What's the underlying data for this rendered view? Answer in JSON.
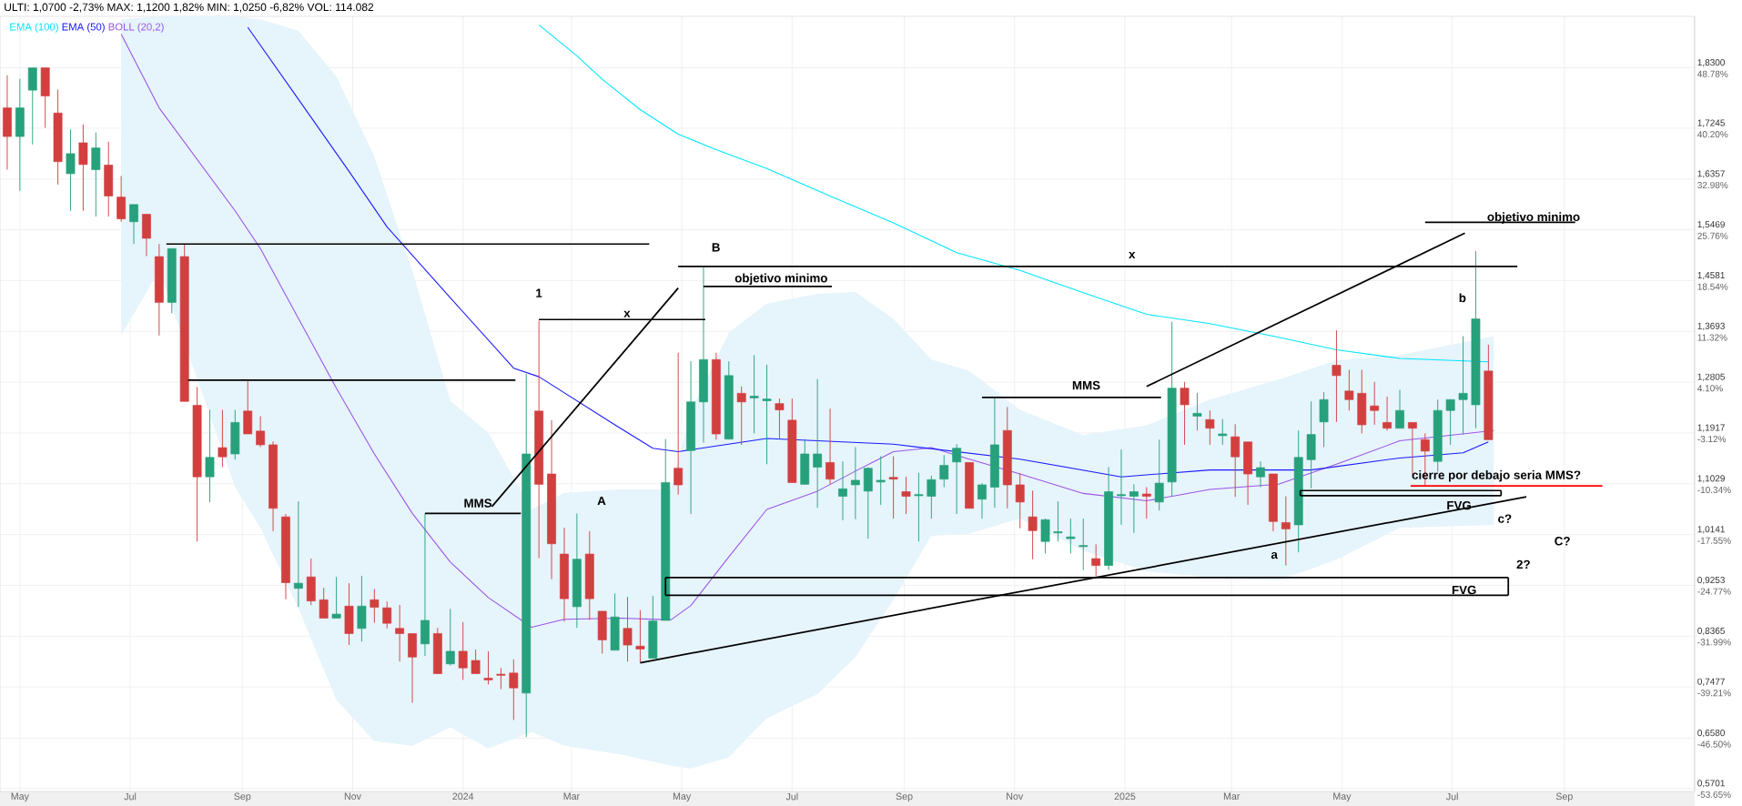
{
  "chart_data": {
    "type": "candlestick",
    "title": "ULTI: 1,0700 -2,73% MAX: 1,1200 1,82% MIN: 1,0250 -6,82% VOL: 114.082",
    "x": [
      "2023-04-24",
      "2023-05-01",
      "2023-05-08",
      "2023-05-15",
      "2023-05-22",
      "2023-05-29",
      "2023-06-05",
      "2023-06-12",
      "2023-06-19",
      "2023-06-26",
      "2023-07-03",
      "2023-07-10",
      "2023-07-17",
      "2023-07-24",
      "2023-07-31",
      "2023-08-07",
      "2023-08-14",
      "2023-08-21",
      "2023-08-28",
      "2023-09-04",
      "2023-09-11",
      "2023-09-18",
      "2023-09-25",
      "2023-10-02",
      "2023-10-09",
      "2023-10-16",
      "2023-10-23",
      "2023-10-30",
      "2023-11-06",
      "2023-11-13",
      "2023-11-20",
      "2023-11-27",
      "2023-12-04",
      "2023-12-11",
      "2023-12-18",
      "2023-12-25",
      "2024-01-01",
      "2024-01-08",
      "2024-01-15",
      "2024-01-22",
      "2024-01-29",
      "2024-02-05",
      "2024-02-12",
      "2024-02-19",
      "2024-02-26",
      "2024-03-04",
      "2024-03-11",
      "2024-03-18",
      "2024-03-25",
      "2024-04-01",
      "2024-04-08",
      "2024-04-15",
      "2024-04-22",
      "2024-04-29",
      "2024-05-06",
      "2024-05-13",
      "2024-05-20",
      "2024-05-27",
      "2024-06-03",
      "2024-06-10",
      "2024-06-17",
      "2024-06-24",
      "2024-07-01",
      "2024-07-08",
      "2024-07-15",
      "2024-07-22",
      "2024-07-29",
      "2024-08-05",
      "2024-08-12",
      "2024-08-19",
      "2024-08-26",
      "2024-09-02",
      "2024-09-09",
      "2024-09-16",
      "2024-09-23",
      "2024-09-30",
      "2024-10-07",
      "2024-10-14",
      "2024-10-21",
      "2024-10-28",
      "2024-11-04",
      "2024-11-11",
      "2024-11-18",
      "2024-11-25",
      "2024-12-02",
      "2024-12-09",
      "2024-12-16",
      "2024-12-23",
      "2024-12-30",
      "2025-01-06",
      "2025-01-13",
      "2025-01-20",
      "2025-01-27",
      "2025-02-03",
      "2025-02-10",
      "2025-02-17",
      "2025-02-24",
      "2025-03-03",
      "2025-03-10",
      "2025-03-17",
      "2025-03-24",
      "2025-03-31",
      "2025-04-07",
      "2025-04-14",
      "2025-04-21",
      "2025-04-28",
      "2025-05-05",
      "2025-05-12",
      "2025-05-19",
      "2025-05-26",
      "2025-06-02",
      "2025-06-09",
      "2025-06-16",
      "2025-06-23",
      "2025-06-30",
      "2025-07-07",
      "2025-07-14",
      "2025-07-21"
    ],
    "ohlc": [
      [
        1.76,
        1.817,
        1.652,
        1.71
      ],
      [
        1.71,
        1.811,
        1.615,
        1.76
      ],
      [
        1.791,
        1.83,
        1.696,
        1.83
      ],
      [
        1.83,
        1.83,
        1.725,
        1.781
      ],
      [
        1.751,
        1.792,
        1.626,
        1.666
      ],
      [
        1.645,
        1.722,
        1.58,
        1.68
      ],
      [
        1.699,
        1.731,
        1.58,
        1.661
      ],
      [
        1.652,
        1.717,
        1.57,
        1.69
      ],
      [
        1.66,
        1.701,
        1.57,
        1.606
      ],
      [
        1.604,
        1.641,
        1.561,
        1.566
      ],
      [
        1.561,
        1.591,
        1.522,
        1.591
      ],
      [
        1.574,
        1.574,
        1.501,
        1.532
      ],
      [
        1.5,
        1.522,
        1.362,
        1.42
      ],
      [
        1.42,
        1.514,
        1.401,
        1.514
      ],
      [
        1.5,
        1.522,
        1.247,
        1.247
      ],
      [
        1.24,
        1.272,
        1.002,
        1.115
      ],
      [
        1.115,
        1.232,
        1.071,
        1.149
      ],
      [
        1.166,
        1.232,
        1.132,
        1.15
      ],
      [
        1.155,
        1.232,
        1.145,
        1.21
      ],
      [
        1.23,
        1.282,
        1.19,
        1.19
      ],
      [
        1.195,
        1.221,
        1.167,
        1.171
      ],
      [
        1.171,
        1.177,
        1.02,
        1.06
      ],
      [
        1.045,
        1.05,
        0.901,
        0.93
      ],
      [
        0.92,
        1.072,
        0.888,
        0.929
      ],
      [
        0.94,
        0.972,
        0.891,
        0.898
      ],
      [
        0.9,
        0.921,
        0.868,
        0.868
      ],
      [
        0.868,
        0.94,
        0.868,
        0.875
      ],
      [
        0.889,
        0.929,
        0.821,
        0.841
      ],
      [
        0.85,
        0.942,
        0.827,
        0.889
      ],
      [
        0.9,
        0.919,
        0.86,
        0.887
      ],
      [
        0.886,
        0.897,
        0.85,
        0.859
      ],
      [
        0.85,
        0.891,
        0.792,
        0.841
      ],
      [
        0.841,
        0.841,
        0.72,
        0.8
      ],
      [
        0.823,
        1.051,
        0.802,
        0.864
      ],
      [
        0.841,
        0.851,
        0.771,
        0.771
      ],
      [
        0.788,
        0.884,
        0.785,
        0.81
      ],
      [
        0.81,
        0.861,
        0.76,
        0.781
      ],
      [
        0.794,
        0.813,
        0.771,
        0.771
      ],
      [
        0.763,
        0.81,
        0.752,
        0.76
      ],
      [
        0.77,
        0.781,
        0.744,
        0.768
      ],
      [
        0.772,
        0.796,
        0.69,
        0.746
      ],
      [
        0.737,
        1.295,
        0.66,
        1.155
      ],
      [
        1.23,
        1.388,
        0.973,
        1.102
      ],
      [
        1.12,
        1.214,
        0.936,
        0.998
      ],
      [
        0.98,
        1.026,
        0.862,
        0.902
      ],
      [
        0.888,
        1.051,
        0.851,
        0.971
      ],
      [
        0.98,
        1.02,
        0.865,
        0.902
      ],
      [
        0.88,
        0.88,
        0.806,
        0.83
      ],
      [
        0.812,
        0.911,
        0.812,
        0.87
      ],
      [
        0.85,
        0.905,
        0.792,
        0.821
      ],
      [
        0.819,
        0.882,
        0.79,
        0.814
      ],
      [
        0.798,
        0.907,
        0.798,
        0.863
      ],
      [
        0.864,
        1.181,
        0.864,
        1.105
      ],
      [
        1.13,
        1.332,
        1.084,
        1.101
      ],
      [
        1.161,
        1.317,
        1.05,
        1.246
      ],
      [
        1.246,
        1.482,
        1.175,
        1.32
      ],
      [
        1.32,
        1.332,
        1.18,
        1.19
      ],
      [
        1.181,
        1.317,
        1.181,
        1.292
      ],
      [
        1.261,
        1.273,
        1.171,
        1.246
      ],
      [
        1.253,
        1.328,
        1.191,
        1.256
      ],
      [
        1.248,
        1.311,
        1.137,
        1.251
      ],
      [
        1.243,
        1.252,
        1.181,
        1.232
      ],
      [
        1.214,
        1.252,
        1.105,
        1.105
      ],
      [
        1.102,
        1.181,
        1.102,
        1.155
      ],
      [
        1.132,
        1.286,
        1.061,
        1.155
      ],
      [
        1.14,
        1.234,
        1.102,
        1.111
      ],
      [
        1.081,
        1.142,
        1.039,
        1.094
      ],
      [
        1.101,
        1.167,
        1.041,
        1.109
      ],
      [
        1.09,
        1.132,
        1.007,
        1.13
      ],
      [
        1.106,
        1.151,
        1.066,
        1.109
      ],
      [
        1.114,
        1.151,
        1.042,
        1.111
      ],
      [
        1.089,
        1.115,
        1.05,
        1.081
      ],
      [
        1.082,
        1.122,
        1.002,
        1.084
      ],
      [
        1.081,
        1.117,
        1.042,
        1.11
      ],
      [
        1.111,
        1.153,
        1.097,
        1.135
      ],
      [
        1.141,
        1.172,
        1.05,
        1.165
      ],
      [
        1.14,
        1.14,
        1.06,
        1.06
      ],
      [
        1.076,
        1.104,
        1.042,
        1.101
      ],
      [
        1.097,
        1.255,
        1.061,
        1.171
      ],
      [
        1.196,
        1.237,
        1.06,
        1.101
      ],
      [
        1.101,
        1.121,
        1.025,
        1.071
      ],
      [
        1.045,
        1.091,
        0.971,
        1.021
      ],
      [
        1.002,
        1.042,
        0.981,
        1.04
      ],
      [
        1.017,
        1.072,
        1.002,
        1.019
      ],
      [
        1.007,
        1.042,
        0.981,
        1.01
      ],
      [
        0.993,
        1.042,
        0.952,
        0.995
      ],
      [
        0.972,
        0.997,
        0.941,
        0.96
      ],
      [
        0.96,
        1.132,
        0.952,
        1.089
      ],
      [
        1.082,
        1.163,
        1.031,
        1.084
      ],
      [
        1.081,
        1.102,
        1.017,
        1.089
      ],
      [
        1.085,
        1.097,
        1.042,
        1.081
      ],
      [
        1.071,
        1.18,
        1.056,
        1.104
      ],
      [
        1.106,
        1.386,
        1.081,
        1.27
      ],
      [
        1.27,
        1.281,
        1.171,
        1.241
      ],
      [
        1.221,
        1.262,
        1.196,
        1.226
      ],
      [
        1.215,
        1.231,
        1.171,
        1.2
      ],
      [
        1.187,
        1.216,
        1.171,
        1.19
      ],
      [
        1.185,
        1.207,
        1.08,
        1.15
      ],
      [
        1.176,
        1.176,
        1.066,
        1.12
      ],
      [
        1.115,
        1.142,
        1.097,
        1.131
      ],
      [
        1.12,
        1.12,
        1.02,
        1.037
      ],
      [
        1.035,
        1.081,
        0.96,
        1.024
      ],
      [
        1.031,
        1.196,
        0.983,
        1.149
      ],
      [
        1.145,
        1.247,
        1.095,
        1.189
      ],
      [
        1.211,
        1.263,
        1.167,
        1.25
      ],
      [
        1.31,
        1.371,
        1.211,
        1.292
      ],
      [
        1.265,
        1.302,
        1.231,
        1.25
      ],
      [
        1.261,
        1.302,
        1.191,
        1.206
      ],
      [
        1.239,
        1.281,
        1.206,
        1.231
      ],
      [
        1.21,
        1.255,
        1.196,
        1.2
      ],
      [
        1.2,
        1.267,
        1.2,
        1.231
      ],
      [
        1.21,
        1.21,
        1.118,
        1.2
      ],
      [
        1.18,
        1.191,
        1.1,
        1.16
      ],
      [
        1.142,
        1.25,
        1.124,
        1.231
      ],
      [
        1.231,
        1.25,
        1.171,
        1.25
      ],
      [
        1.25,
        1.361,
        1.189,
        1.261
      ],
      [
        1.241,
        1.51,
        1.2,
        1.391
      ],
      [
        1.3,
        1.346,
        1.18,
        1.18
      ]
    ],
    "colors": [
      "#d23f3f",
      "#26a17b",
      "#26a17b",
      "#d23f3f",
      "#d23f3f",
      "#26a17b",
      "#d23f3f",
      "#26a17b",
      "#d23f3f",
      "#d23f3f",
      "#26a17b",
      "#d23f3f",
      "#d23f3f",
      "#26a17b",
      "#d23f3f",
      "#d23f3f",
      "#26a17b",
      "#d23f3f",
      "#26a17b",
      "#d23f3f",
      "#d23f3f",
      "#d23f3f",
      "#d23f3f",
      "#26a17b",
      "#d23f3f",
      "#d23f3f",
      "#26a17b",
      "#d23f3f",
      "#26a17b",
      "#d23f3f",
      "#d23f3f",
      "#d23f3f",
      "#d23f3f",
      "#26a17b",
      "#d23f3f",
      "#26a17b",
      "#d23f3f",
      "#d23f3f",
      "#d23f3f",
      "#d23f3f",
      "#d23f3f",
      "#26a17b",
      "#d23f3f",
      "#d23f3f",
      "#d23f3f",
      "#26a17b",
      "#d23f3f",
      "#d23f3f",
      "#26a17b",
      "#d23f3f",
      "#d23f3f",
      "#26a17b",
      "#26a17b",
      "#d23f3f",
      "#26a17b",
      "#26a17b",
      "#d23f3f",
      "#26a17b",
      "#d23f3f",
      "#26a17b",
      "#26a17b",
      "#d23f3f",
      "#d23f3f",
      "#26a17b",
      "#26a17b",
      "#d23f3f",
      "#26a17b",
      "#26a17b",
      "#26a17b",
      "#26a17b",
      "#d23f3f",
      "#d23f3f",
      "#26a17b",
      "#26a17b",
      "#26a17b",
      "#26a17b",
      "#d23f3f",
      "#26a17b",
      "#26a17b",
      "#d23f3f",
      "#d23f3f",
      "#d23f3f",
      "#26a17b",
      "#26a17b",
      "#26a17b",
      "#26a17b",
      "#d23f3f",
      "#26a17b",
      "#26a17b",
      "#26a17b",
      "#d23f3f",
      "#26a17b",
      "#26a17b",
      "#d23f3f",
      "#26a17b",
      "#d23f3f",
      "#26a17b",
      "#d23f3f",
      "#d23f3f",
      "#26a17b",
      "#d23f3f",
      "#d23f3f",
      "#26a17b",
      "#26a17b",
      "#26a17b",
      "#d23f3f",
      "#d23f3f",
      "#d23f3f",
      "#d23f3f",
      "#d23f3f",
      "#26a17b",
      "#d23f3f",
      "#d23f3f",
      "#26a17b",
      "#26a17b",
      "#26a17b",
      "#26a17b",
      "#d23f3f"
    ],
    "series": [
      {
        "type": "line",
        "name": "EMA (100)",
        "color": "#00e5ff",
        "x": [
          "2024-02-12",
          "2024-03-04",
          "2024-03-18",
          "2024-04-08",
          "2024-04-29",
          "2024-05-20",
          "2024-06-17",
          "2024-07-22",
          "2024-08-26",
          "2024-09-30",
          "2024-11-04",
          "2024-12-09",
          "2025-01-13",
          "2025-02-17",
          "2025-03-24",
          "2025-04-28",
          "2025-06-02",
          "2025-07-21"
        ],
        "values": [
          1.905,
          1.851,
          1.81,
          1.757,
          1.714,
          1.687,
          1.654,
          1.606,
          1.559,
          1.507,
          1.476,
          1.437,
          1.399,
          1.383,
          1.361,
          1.337,
          1.322,
          1.316
        ]
      },
      {
        "type": "line",
        "name": "EMA (50)",
        "color": "#1a1aff",
        "x": [
          "2023-09-04",
          "2023-10-02",
          "2023-10-30",
          "2023-11-20",
          "2023-12-25",
          "2024-01-29",
          "2024-02-12",
          "2024-03-04",
          "2024-03-25",
          "2024-04-15",
          "2024-04-29",
          "2024-05-20",
          "2024-06-17",
          "2024-08-26",
          "2024-11-04",
          "2024-12-30",
          "2025-02-17",
          "2025-04-14",
          "2025-06-02",
          "2025-07-07",
          "2025-07-21"
        ],
        "values": [
          1.901,
          1.775,
          1.649,
          1.552,
          1.428,
          1.305,
          1.29,
          1.248,
          1.206,
          1.165,
          1.159,
          1.169,
          1.182,
          1.172,
          1.146,
          1.115,
          1.127,
          1.127,
          1.148,
          1.157,
          1.176
        ]
      },
      {
        "type": "line",
        "name": "BOLL (20,2)",
        "color": "#9b55e8",
        "x": [
          "2023-06-26",
          "2023-07-17",
          "2023-08-28",
          "2023-09-11",
          "2023-10-02",
          "2023-10-23",
          "2023-11-13",
          "2023-12-04",
          "2023-12-25",
          "2024-01-15",
          "2024-02-08",
          "2024-02-26",
          "2024-03-28",
          "2024-04-25",
          "2024-05-06",
          "2024-05-27",
          "2024-06-17",
          "2024-07-15",
          "2024-08-05",
          "2024-08-26",
          "2024-09-16",
          "2024-10-07",
          "2024-11-04",
          "2024-12-09",
          "2025-01-13",
          "2025-02-17",
          "2025-03-27",
          "2025-04-28",
          "2025-06-02",
          "2025-07-24"
        ],
        "values": [
          1.889,
          1.76,
          1.58,
          1.514,
          1.392,
          1.27,
          1.155,
          1.051,
          0.966,
          0.904,
          0.852,
          0.866,
          0.868,
          0.865,
          0.89,
          0.975,
          1.058,
          1.09,
          1.125,
          1.159,
          1.166,
          1.146,
          1.12,
          1.086,
          1.073,
          1.093,
          1.102,
          1.137,
          1.178,
          1.196
        ],
        "upper": [
          1.915,
          1.92,
          1.92,
          1.915,
          1.895,
          1.815,
          1.675,
          1.475,
          1.248,
          1.192,
          1.058,
          1.087,
          1.093,
          1.093,
          1.23,
          1.367,
          1.418,
          1.435,
          1.438,
          1.391,
          1.32,
          1.3,
          1.232,
          1.188,
          1.205,
          1.25,
          1.285,
          1.319,
          1.328,
          1.361
        ],
        "lower": [
          1.362,
          1.476,
          1.097,
          1.026,
          0.885,
          0.725,
          0.653,
          0.645,
          0.677,
          0.64,
          0.669,
          0.645,
          0.63,
          0.61,
          0.605,
          0.625,
          0.693,
          0.735,
          0.8,
          0.9,
          1.012,
          1.016,
          1.042,
          0.986,
          0.95,
          0.939,
          0.934,
          0.97,
          1.026,
          1.031
        ]
      },
      {
        "type": "line",
        "color": "#000000",
        "x": [
          "2023-07-21",
          "2024-04-13"
        ],
        "values": [
          1.522,
          1.522
        ]
      },
      {
        "type": "line",
        "color": "#000000",
        "x": [
          "2023-08-02",
          "2024-01-30"
        ],
        "values": [
          1.284,
          1.284
        ]
      },
      {
        "type": "line",
        "color": "#000000",
        "x": [
          "2024-02-12",
          "2024-05-14"
        ],
        "values": [
          1.39,
          1.39
        ]
      },
      {
        "type": "line",
        "color": "#000000",
        "x": [
          "2023-12-11",
          "2024-02-02"
        ],
        "values": [
          1.051,
          1.051
        ]
      },
      {
        "type": "line",
        "color": "#000000",
        "x": [
          "2024-01-17",
          "2024-04-29"
        ],
        "values": [
          1.063,
          1.445
        ]
      },
      {
        "type": "line",
        "color": "#000000",
        "x": [
          "2024-04-29",
          "2025-08-06"
        ],
        "values": [
          1.483,
          1.483
        ]
      },
      {
        "type": "line",
        "color": "#000000",
        "x": [
          "2024-05-13",
          "2024-07-23"
        ],
        "values": [
          1.448,
          1.448
        ]
      },
      {
        "type": "line",
        "color": "#000000",
        "x": [
          "2024-04-08",
          "2025-08-11"
        ],
        "values": [
          0.79,
          1.08
        ]
      },
      {
        "type": "line",
        "color": "#000000",
        "x": [
          "2024-04-22",
          "2025-08-01"
        ],
        "values": [
          0.939,
          0.939
        ]
      },
      {
        "type": "line",
        "color": "#000000",
        "x": [
          "2024-04-22",
          "2025-08-01"
        ],
        "values": [
          0.908,
          0.908
        ]
      },
      {
        "type": "line",
        "color": "#000000",
        "x": [
          "2024-04-22",
          "2024-04-22"
        ],
        "values": [
          0.939,
          0.908
        ]
      },
      {
        "type": "line",
        "color": "#000000",
        "x": [
          "2025-08-01",
          "2025-08-01"
        ],
        "values": [
          0.939,
          0.908
        ]
      },
      {
        "type": "line",
        "color": "#000000",
        "x": [
          "2025-04-08",
          "2025-07-28"
        ],
        "values": [
          1.091,
          1.091
        ]
      },
      {
        "type": "line",
        "color": "#000000",
        "x": [
          "2025-04-08",
          "2025-07-28"
        ],
        "values": [
          1.082,
          1.082
        ]
      },
      {
        "type": "line",
        "color": "#000000",
        "x": [
          "2025-04-08",
          "2025-04-08"
        ],
        "values": [
          1.091,
          1.082
        ]
      },
      {
        "type": "line",
        "color": "#000000",
        "x": [
          "2025-07-28",
          "2025-07-28"
        ],
        "values": [
          1.091,
          1.082
        ]
      },
      {
        "type": "line",
        "color": "#000000",
        "x": [
          "2024-10-14",
          "2025-01-21"
        ],
        "values": [
          1.254,
          1.254
        ]
      },
      {
        "type": "line",
        "color": "#000000",
        "x": [
          "2025-01-13",
          "2025-07-08"
        ],
        "values": [
          1.273,
          1.541
        ]
      },
      {
        "type": "line",
        "color": "#000000",
        "x": [
          "2025-06-16",
          "2025-09-07"
        ],
        "values": [
          1.56,
          1.56
        ]
      },
      {
        "type": "line",
        "color": "#ff0000",
        "x": [
          "2025-06-08",
          "2025-09-22"
        ],
        "values": [
          1.099,
          1.099
        ]
      }
    ],
    "xlim": [
      "2023-04-20",
      "2025-11-12"
    ],
    "ylim": [
      0.565,
      1.92
    ],
    "xticks": [
      {
        "value": "2023-05-01",
        "label": "May"
      },
      {
        "value": "2023-07-01",
        "label": "Jul"
      },
      {
        "value": "2023-09-01",
        "label": "Sep"
      },
      {
        "value": "2023-11-01",
        "label": "Nov"
      },
      {
        "value": "2024-01-01",
        "label": "2024"
      },
      {
        "value": "2024-03-01",
        "label": "Mar"
      },
      {
        "value": "2024-05-01",
        "label": "May"
      },
      {
        "value": "2024-07-01",
        "label": "Jul"
      },
      {
        "value": "2024-09-01",
        "label": "Sep"
      },
      {
        "value": "2024-11-01",
        "label": "Nov"
      },
      {
        "value": "2025-01-01",
        "label": "2025"
      },
      {
        "value": "2025-03-01",
        "label": "Mar"
      },
      {
        "value": "2025-05-01",
        "label": "May"
      },
      {
        "value": "2025-07-01",
        "label": "Jul"
      },
      {
        "value": "2025-09-01",
        "label": "Sep"
      }
    ],
    "yticks": [
      {
        "value": 1.83,
        "label": "1,8300"
      },
      {
        "value": 1.7245,
        "label": "1,7245"
      },
      {
        "value": 1.6357,
        "label": "1,6357"
      },
      {
        "value": 1.5469,
        "label": "1,5469"
      },
      {
        "value": 1.4581,
        "label": "1,4581"
      },
      {
        "value": 1.3693,
        "label": "1,3693"
      },
      {
        "value": 1.2805,
        "label": "1,2805"
      },
      {
        "value": 1.1917,
        "label": "1,1917"
      },
      {
        "value": 1.1029,
        "label": "1,1029"
      },
      {
        "value": 1.0141,
        "label": "1,0141"
      },
      {
        "value": 0.9253,
        "label": "0,9253"
      },
      {
        "value": 0.8365,
        "label": "0,8365"
      },
      {
        "value": 0.7477,
        "label": "0,7477"
      },
      {
        "value": 0.658,
        "label": "0,6580"
      },
      {
        "value": 0.5701,
        "label": "0,5701"
      }
    ],
    "y2lim": [
      -54.07,
      56.1
    ],
    "y2ticks": [
      {
        "value": 48.78,
        "label": "48.78%"
      },
      {
        "value": 40.2,
        "label": "40.20%"
      },
      {
        "value": 32.98,
        "label": "32.98%"
      },
      {
        "value": 25.76,
        "label": "25.76%"
      },
      {
        "value": 18.54,
        "label": "18.54%"
      },
      {
        "value": 11.32,
        "label": "11.32%"
      },
      {
        "value": 4.1,
        "label": "4.10%"
      },
      {
        "value": -3.12,
        "label": "-3.12%"
      },
      {
        "value": -10.34,
        "label": "-10.34%"
      },
      {
        "value": -17.55,
        "label": "-17.55%"
      },
      {
        "value": -24.77,
        "label": "-24.77%"
      },
      {
        "value": -31.99,
        "label": "-31.99%"
      },
      {
        "value": -39.21,
        "label": "-39.21%"
      },
      {
        "value": -46.5,
        "label": "-46.50%"
      },
      {
        "value": -53.65,
        "label": "-53.65%"
      }
    ],
    "grid": true,
    "legend": "top left",
    "annotations": [
      "1",
      "x",
      "MMS",
      "A",
      "B",
      "objetivo minimo",
      "x",
      "MMS",
      "objetivo minimo",
      "b",
      "a",
      "cierre por debajo seria MMS?",
      "FVG",
      "c?",
      "C?",
      "2?",
      "FVG"
    ]
  }
}
